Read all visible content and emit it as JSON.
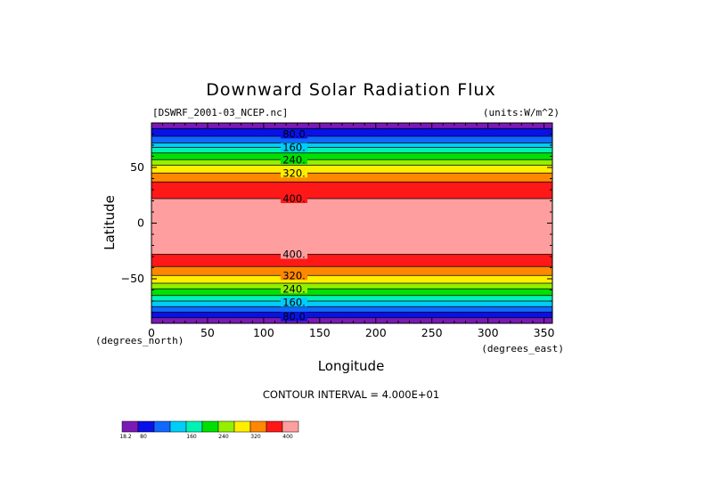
{
  "header": {
    "title": "Downward Solar Radiation Flux",
    "dataset": "[DSWRF_2001-03_NCEP.nc]",
    "units": "(units:W/m^2)"
  },
  "footer": {
    "contour_interval": "CONTOUR INTERVAL = 4.000E+01"
  },
  "colors": {
    "levels": [
      "#7b19b6",
      "#0a10e8",
      "#1068ff",
      "#00cdf8",
      "#00f2b4",
      "#00e000",
      "#92f000",
      "#ffee00",
      "#ff8800",
      "#ff1818",
      "#ff9e9e"
    ]
  },
  "chart_data": {
    "type": "heatmap",
    "title": "Downward Solar Radiation Flux",
    "xlabel": "Longitude",
    "ylabel": "Latitude",
    "x_unit_label": "(degrees_east)",
    "y_unit_label": "(degrees_north)",
    "xlim": [
      0,
      357.5
    ],
    "ylim": [
      -90,
      90
    ],
    "x_ticks": [
      0,
      50,
      100,
      150,
      200,
      250,
      300,
      350
    ],
    "y_ticks": [
      -50,
      0,
      50
    ],
    "y_tick_labels": [
      "−50",
      "0",
      "50"
    ],
    "level_edges": [
      18.2,
      40,
      80,
      120,
      160,
      200,
      240,
      280,
      320,
      360,
      400
    ],
    "colorbar_labels": [
      {
        "value": 18.2,
        "text": "18.2"
      },
      {
        "value": 80,
        "text": "80"
      },
      {
        "value": 160,
        "text": "160"
      },
      {
        "value": 240,
        "text": "240"
      },
      {
        "value": 320,
        "text": "320"
      },
      {
        "value": 400,
        "text": "400"
      }
    ],
    "bands": [
      {
        "lat": [
          85,
          90
        ],
        "level": 0
      },
      {
        "lat": [
          78,
          85
        ],
        "level": 1
      },
      {
        "lat": [
          72,
          78
        ],
        "level": 2
      },
      {
        "lat": [
          68,
          72
        ],
        "level": 3
      },
      {
        "lat": [
          63,
          68
        ],
        "level": 4
      },
      {
        "lat": [
          57,
          63
        ],
        "level": 5
      },
      {
        "lat": [
          52,
          57
        ],
        "level": 6
      },
      {
        "lat": [
          45,
          52
        ],
        "level": 7
      },
      {
        "lat": [
          37,
          45
        ],
        "level": 8
      },
      {
        "lat": [
          22,
          37
        ],
        "level": 9
      },
      {
        "lat": [
          -28,
          22
        ],
        "level": 10
      },
      {
        "lat": [
          -39,
          -28
        ],
        "level": 9
      },
      {
        "lat": [
          -47,
          -39
        ],
        "level": 8
      },
      {
        "lat": [
          -54,
          -47
        ],
        "level": 7
      },
      {
        "lat": [
          -59,
          -54
        ],
        "level": 6
      },
      {
        "lat": [
          -65,
          -59
        ],
        "level": 5
      },
      {
        "lat": [
          -70,
          -65
        ],
        "level": 4
      },
      {
        "lat": [
          -75,
          -70
        ],
        "level": 3
      },
      {
        "lat": [
          -80,
          -75
        ],
        "level": 2
      },
      {
        "lat": [
          -85,
          -80
        ],
        "level": 1
      },
      {
        "lat": [
          -90,
          -85
        ],
        "level": 0
      }
    ],
    "contour_labels": [
      {
        "text": "80.0",
        "lat": 80
      },
      {
        "text": "160.",
        "lat": 68
      },
      {
        "text": "240.",
        "lat": 57
      },
      {
        "text": "320.",
        "lat": 45
      },
      {
        "text": "400.",
        "lat": 22
      },
      {
        "text": "400.",
        "lat": -28
      },
      {
        "text": "320.",
        "lat": -47
      },
      {
        "text": "240.",
        "lat": -59
      },
      {
        "text": "160.",
        "lat": -71
      },
      {
        "text": "80.0",
        "lat": -84
      }
    ]
  }
}
